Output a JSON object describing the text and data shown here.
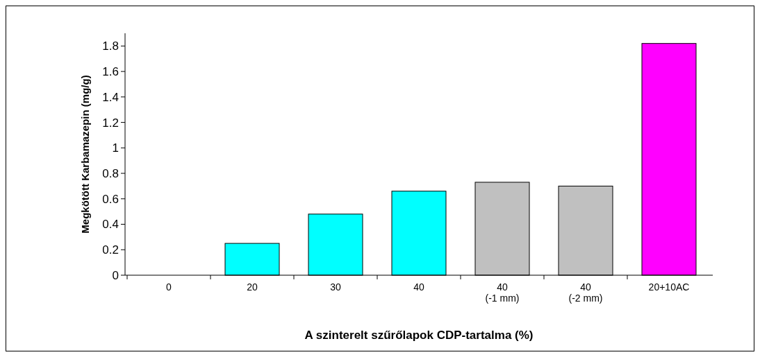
{
  "chart_data": {
    "type": "bar",
    "xlabel": "A szinterelt szűrőlapok CDP-tartalma (%)",
    "ylabel": "Megkötött Karbamazepin  (mg/g)",
    "categories": [
      "0",
      "20",
      "30",
      "40",
      "40\n(-1 mm)",
      "40\n(-2 mm)",
      "20+10AC"
    ],
    "values": [
      0,
      0.25,
      0.48,
      0.66,
      0.73,
      0.7,
      1.82
    ],
    "colors": [
      "#00ffff",
      "#00ffff",
      "#00ffff",
      "#00ffff",
      "#c0c0c0",
      "#c0c0c0",
      "#ff00ff"
    ],
    "ylim": [
      0,
      1.9
    ],
    "yticks": [
      0,
      0.2,
      0.4,
      0.6,
      0.8,
      1,
      1.2,
      1.4,
      1.6,
      1.8
    ],
    "grid": false
  }
}
